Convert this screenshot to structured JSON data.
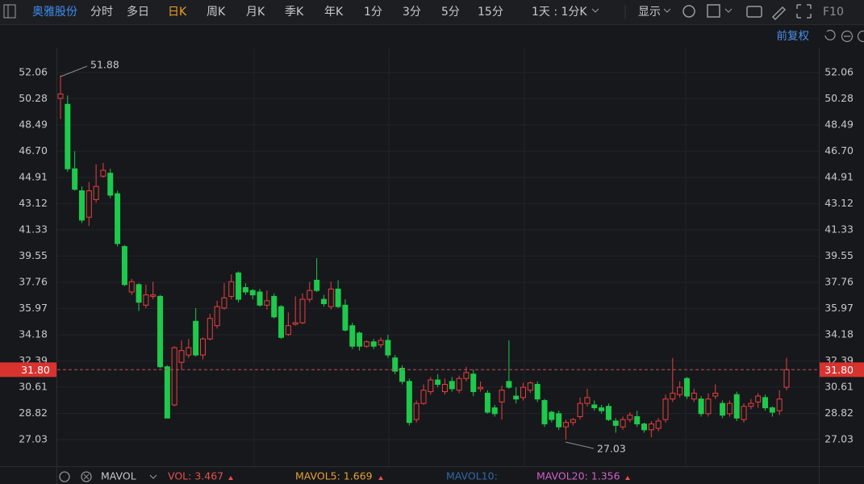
{
  "toolbar": {
    "stock": "奥雅股份",
    "periods": [
      "分时",
      "多日",
      "日K",
      "周K",
      "月K",
      "季K",
      "年K",
      "1分",
      "3分",
      "5分",
      "15分"
    ],
    "interval": "1天 : 1分K",
    "display": "显示",
    "f10": "F10"
  },
  "adjust": "前复权",
  "chart_data": {
    "type": "candlestick",
    "open": [
      50.3,
      49.9,
      45.5,
      44.0,
      42.2,
      43.4,
      45.0,
      45.2,
      43.8,
      40.2,
      37.1,
      37.6,
      36.2,
      36.8,
      36.8,
      32.0,
      29.4,
      32.3,
      32.8,
      35.1,
      32.8,
      33.9,
      34.8,
      36.0,
      36.8,
      38.4,
      37.4,
      37.2,
      37.1,
      36.2,
      36.8,
      36.1,
      34.2,
      34.9,
      35.0,
      36.6,
      37.9,
      36.6,
      36.1,
      37.3,
      36.2,
      34.8,
      34.3,
      33.4,
      33.7,
      33.5,
      33.8,
      32.6,
      31.9,
      31.0,
      28.4,
      29.5,
      30.3,
      31.1,
      30.3,
      31.0,
      30.4,
      31.2,
      31.5,
      30.5,
      30.2,
      29.2,
      29.6,
      31.0,
      30.0,
      29.9,
      30.4,
      30.8,
      29.7,
      28.9,
      28.8,
      27.9,
      28.2,
      28.6,
      29.5,
      29.4,
      29.2,
      29.3,
      28.3,
      27.9,
      28.4,
      28.6,
      28.1,
      27.7,
      27.8,
      28.4,
      29.8,
      30.1,
      31.2,
      29.8,
      29.8,
      28.8,
      30.0,
      29.5,
      28.8,
      30.1,
      28.4,
      29.3,
      29.6,
      29.9,
      29.2,
      29.0,
      30.6
    ],
    "high": [
      51.88,
      50.5,
      46.7,
      44.3,
      44.6,
      45.8,
      45.9,
      45.5,
      44.0,
      40.3,
      38.0,
      37.7,
      37.6,
      37.8,
      36.9,
      32.1,
      33.4,
      33.8,
      33.9,
      36.0,
      34.0,
      35.6,
      36.5,
      37.7,
      38.3,
      38.5,
      37.7,
      37.3,
      37.3,
      37.2,
      37.0,
      36.2,
      35.7,
      36.8,
      37.0,
      37.8,
      39.4,
      36.9,
      37.8,
      37.9,
      36.6,
      35.0,
      34.4,
      33.8,
      33.9,
      34.0,
      34.2,
      32.8,
      32.1,
      31.2,
      29.7,
      30.8,
      31.3,
      31.5,
      31.2,
      31.3,
      31.4,
      32.0,
      31.8,
      31.0,
      30.4,
      29.4,
      30.7,
      33.8,
      30.6,
      30.9,
      31.0,
      31.0,
      29.8,
      29.0,
      29.0,
      28.4,
      28.5,
      29.9,
      30.5,
      29.7,
      29.4,
      29.5,
      28.5,
      28.6,
      28.9,
      29.0,
      28.2,
      28.3,
      28.5,
      30.1,
      32.6,
      31.0,
      31.3,
      30.5,
      30.0,
      30.2,
      30.8,
      29.7,
      29.7,
      30.3,
      29.5,
      29.8,
      30.2,
      30.1,
      29.3,
      30.4,
      32.6
    ],
    "low": [
      48.9,
      45.3,
      44.0,
      41.8,
      41.6,
      43.2,
      44.9,
      43.5,
      40.2,
      37.5,
      36.9,
      35.8,
      36.0,
      36.6,
      31.9,
      28.5,
      29.3,
      31.8,
      32.6,
      32.7,
      32.5,
      33.8,
      34.6,
      35.9,
      36.6,
      36.4,
      36.9,
      36.6,
      36.1,
      35.9,
      35.3,
      33.9,
      34.1,
      34.8,
      34.9,
      36.4,
      37.1,
      36.1,
      35.9,
      36.0,
      34.4,
      33.2,
      33.1,
      33.3,
      33.2,
      33.3,
      32.6,
      31.5,
      30.8,
      28.0,
      28.2,
      29.4,
      30.1,
      30.6,
      30.1,
      30.3,
      30.2,
      31.0,
      30.0,
      30.3,
      28.8,
      28.6,
      28.4,
      30.5,
      29.5,
      29.7,
      30.2,
      29.6,
      27.9,
      28.2,
      27.7,
      27.03,
      28.0,
      28.4,
      29.3,
      29.0,
      28.8,
      28.3,
      27.5,
      27.7,
      28.2,
      27.9,
      27.5,
      27.2,
      27.6,
      28.2,
      29.6,
      29.9,
      29.8,
      29.6,
      28.6,
      28.6,
      29.8,
      28.5,
      28.6,
      28.3,
      28.2,
      29.1,
      29.2,
      29.0,
      28.6,
      28.7,
      30.4
    ],
    "close": [
      50.6,
      45.5,
      44.1,
      42.0,
      44.0,
      44.3,
      45.4,
      43.7,
      40.4,
      37.6,
      37.8,
      36.4,
      36.9,
      36.9,
      32.0,
      28.5,
      33.3,
      33.1,
      33.3,
      32.8,
      33.9,
      35.3,
      36.1,
      36.7,
      37.8,
      36.6,
      37.1,
      36.9,
      36.2,
      36.5,
      35.4,
      34.0,
      34.8,
      35.0,
      36.6,
      37.2,
      37.2,
      36.3,
      37.3,
      36.1,
      34.5,
      33.4,
      33.4,
      33.7,
      33.4,
      33.8,
      32.8,
      31.7,
      31.0,
      28.2,
      29.5,
      30.4,
      31.1,
      30.8,
      30.8,
      30.5,
      31.2,
      31.6,
      30.3,
      30.6,
      28.9,
      28.8,
      30.4,
      30.6,
      29.8,
      30.6,
      30.9,
      29.8,
      28.1,
      28.4,
      27.9,
      28.2,
      28.4,
      29.5,
      29.9,
      29.2,
      29.0,
      28.4,
      28.0,
      28.4,
      28.7,
      28.1,
      27.7,
      28.1,
      28.3,
      29.8,
      30.2,
      30.6,
      30.0,
      30.2,
      28.8,
      29.8,
      30.2,
      28.7,
      29.5,
      28.5,
      29.3,
      29.5,
      30.0,
      29.2,
      28.9,
      29.8,
      31.8
    ],
    "up_color": "#e8413e",
    "down_color": "#1ec94c",
    "ylim": [
      25.38,
      53.71
    ],
    "yticks": [
      52.06,
      50.28,
      48.49,
      {
        "value": 46.7,
        "label": "46.70"
      },
      44.91,
      43.12,
      41.33,
      39.55,
      37.76,
      35.97,
      34.18,
      32.39,
      30.61,
      28.82,
      27.03
    ],
    "grid": true,
    "current_price": {
      "value": 31.8,
      "label": "31.80"
    },
    "annotations": [
      51.88,
      27.03
    ]
  },
  "indicator_bar": {
    "name": "MAVOL",
    "items": [
      "VOL: 3.467",
      "MAVOL5: 1.669",
      "MAVOL10:",
      "MAVOL20: 1.356"
    ]
  }
}
